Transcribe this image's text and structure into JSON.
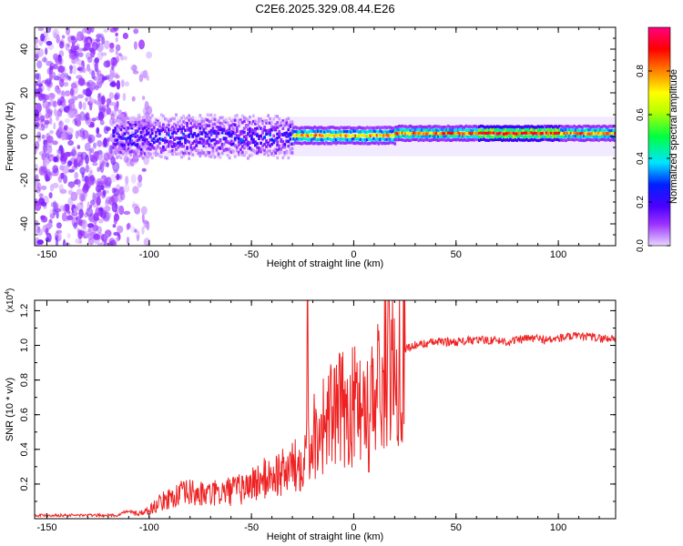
{
  "title": "C2E6.2025.329.08.44.E26",
  "chart_data": [
    {
      "type": "heatmap",
      "title": "C2E6.2025.329.08.44.E26",
      "xlabel": "Height of straight line (km)",
      "ylabel": "Frequency (Hz)",
      "xlim": [
        -156,
        128
      ],
      "ylim": [
        -50,
        50
      ],
      "xticks": [
        -150,
        -100,
        -50,
        0,
        50,
        100
      ],
      "yticks": [
        -40,
        -20,
        0,
        20,
        40
      ],
      "xtick_labels": [
        "-150",
        "-100",
        "-50",
        "0",
        "50",
        "100"
      ],
      "ytick_labels": [
        "-40",
        "-20",
        "0",
        "20",
        "40"
      ],
      "description_of_pattern": "broadband noise below -115 km, spectral line near 0 Hz narrowing above -30 km",
      "colorbar": {
        "label": "Normalized spectral amplitude",
        "range": [
          0,
          1
        ],
        "ticks": [
          0.0,
          0.2,
          0.4,
          0.6,
          0.8
        ],
        "tick_labels": [
          "0.0",
          "0.2",
          "0.4",
          "0.6",
          "0.8"
        ],
        "colormap": [
          "#e8d6ff",
          "#9b30ff",
          "#4b00ff",
          "#0020ff",
          "#00e5ff",
          "#00ff40",
          "#ffff00",
          "#ff8000",
          "#ff0000",
          "#ff0080"
        ]
      },
      "line_segments": [
        {
          "x_start": -118,
          "x_end": -30,
          "freq_center": 0,
          "half_width_hz": 8,
          "peak_amplitude": 0.35
        },
        {
          "x_start": -30,
          "x_end": 20,
          "freq_center": 0.5,
          "half_width_hz": 3.5,
          "peak_amplitude": 0.8
        },
        {
          "x_start": 20,
          "x_end": 128,
          "freq_center": 1.5,
          "half_width_hz": 3,
          "peak_amplitude": 0.85
        }
      ]
    },
    {
      "type": "line",
      "xlabel": "Height of straight line (km)",
      "ylabel": "SNR (10 * v/v)",
      "scale_label": "(x10",
      "scale_exp": "4",
      "scale_close": ")",
      "xlim": [
        -156,
        128
      ],
      "ylim": [
        0,
        1.26
      ],
      "xticks": [
        -150,
        -100,
        -50,
        0,
        50,
        100
      ],
      "yticks": [
        0.2,
        0.4,
        0.6,
        0.8,
        1.0,
        1.2
      ],
      "xtick_labels": [
        "-150",
        "-100",
        "-50",
        "0",
        "50",
        "100"
      ],
      "ytick_labels": [
        "0.2",
        "0.4",
        "0.6",
        "0.8",
        "1.0",
        "1.2"
      ],
      "color": "#ee2222",
      "series": [
        {
          "name": "SNR",
          "x": [
            -156,
            -140,
            -125,
            -115,
            -112,
            -105,
            -100,
            -95,
            -90,
            -85,
            -80,
            -75,
            -70,
            -65,
            -60,
            -55,
            -50,
            -45,
            -40,
            -35,
            -30,
            -27,
            -24,
            -20,
            -15,
            -10,
            -5,
            0,
            5,
            8,
            10,
            12,
            15,
            20,
            25,
            30,
            40,
            50,
            60,
            70,
            75,
            80,
            85,
            90,
            95,
            100,
            105,
            110,
            115,
            120,
            128
          ],
          "y": [
            0.02,
            0.02,
            0.02,
            0.02,
            0.04,
            0.03,
            0.05,
            0.09,
            0.12,
            0.14,
            0.15,
            0.14,
            0.14,
            0.15,
            0.16,
            0.17,
            0.2,
            0.22,
            0.25,
            0.26,
            0.3,
            0.3,
            0.42,
            0.48,
            0.55,
            0.6,
            0.63,
            0.65,
            0.72,
            0.6,
            0.72,
            0.78,
            0.84,
            0.9,
            0.98,
            1.0,
            1.02,
            1.02,
            1.03,
            1.03,
            1.02,
            1.03,
            1.04,
            1.04,
            1.03,
            1.04,
            1.05,
            1.05,
            1.05,
            1.04,
            1.04
          ]
        }
      ],
      "spikes": [
        {
          "x": -22.5,
          "y": 1.26
        },
        {
          "x": 8.5,
          "y": 0.88
        },
        {
          "x": 7.5,
          "y": 0.27
        }
      ]
    }
  ]
}
